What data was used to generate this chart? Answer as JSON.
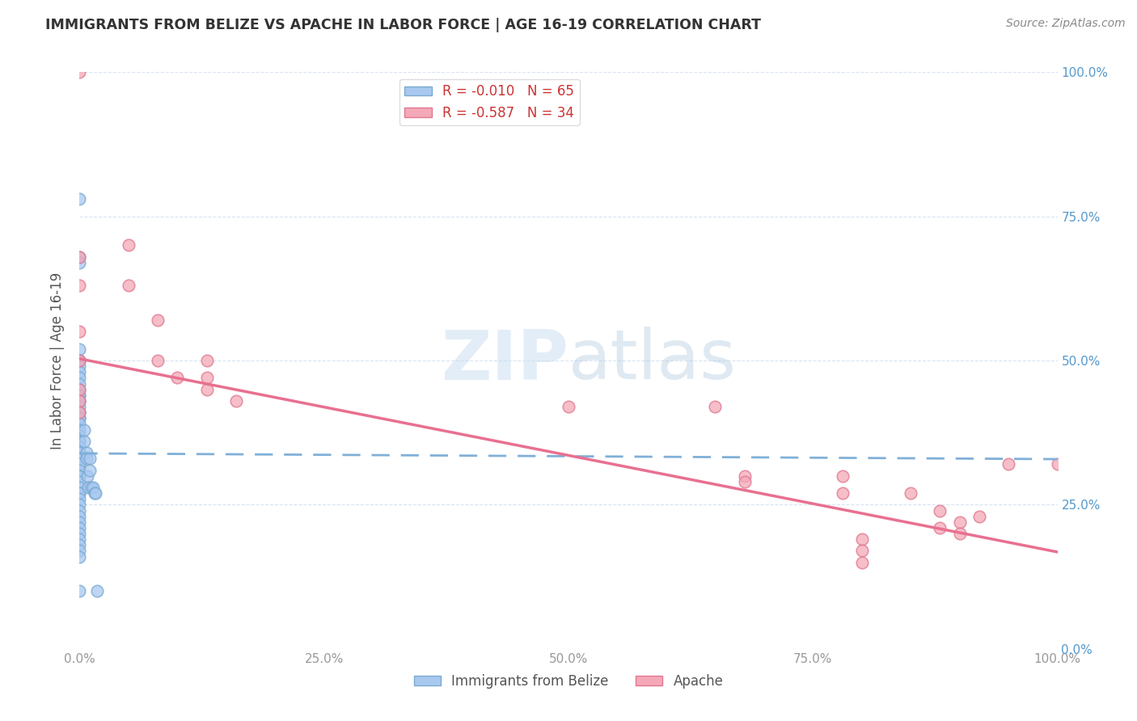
{
  "title": "IMMIGRANTS FROM BELIZE VS APACHE IN LABOR FORCE | AGE 16-19 CORRELATION CHART",
  "source": "Source: ZipAtlas.com",
  "ylabel": "In Labor Force | Age 16-19",
  "xlim": [
    0.0,
    1.0
  ],
  "ylim": [
    0.0,
    1.0
  ],
  "xticks": [
    0.0,
    0.25,
    0.5,
    0.75,
    1.0
  ],
  "yticks": [
    0.0,
    0.25,
    0.5,
    0.75,
    1.0
  ],
  "xtick_labels": [
    "0.0%",
    "25.0%",
    "50.0%",
    "75.0%",
    "100.0%"
  ],
  "ytick_labels_left": [
    "",
    "",
    "",
    "",
    ""
  ],
  "ytick_labels_right": [
    "0.0%",
    "25.0%",
    "50.0%",
    "75.0%",
    "100.0%"
  ],
  "belize_color": "#a8c8f0",
  "apache_color": "#f4a8b8",
  "belize_edge_color": "#7aaad0",
  "apache_edge_color": "#e07890",
  "belize_line_color": "#80b0d8",
  "apache_line_color": "#e87090",
  "belize_R": -0.01,
  "belize_N": 65,
  "apache_R": -0.587,
  "apache_N": 34,
  "belize_x": [
    0.0,
    0.0,
    0.0,
    0.0,
    0.0,
    0.0,
    0.0,
    0.0,
    0.0,
    0.0,
    0.0,
    0.0,
    0.0,
    0.0,
    0.0,
    0.0,
    0.0,
    0.0,
    0.0,
    0.0,
    0.0,
    0.0,
    0.0,
    0.0,
    0.0,
    0.0,
    0.0,
    0.0,
    0.0,
    0.0,
    0.0,
    0.0,
    0.0,
    0.0,
    0.0,
    0.0,
    0.0,
    0.0,
    0.0,
    0.0,
    0.0,
    0.0,
    0.0,
    0.0,
    0.0,
    0.0,
    0.0,
    0.0,
    0.0,
    0.0,
    0.0,
    0.0,
    0.005,
    0.005,
    0.007,
    0.007,
    0.008,
    0.009,
    0.01,
    0.01,
    0.012,
    0.014,
    0.015,
    0.016,
    0.018
  ],
  "belize_y": [
    0.78,
    0.68,
    0.67,
    0.52,
    0.5,
    0.5,
    0.49,
    0.48,
    0.47,
    0.46,
    0.45,
    0.44,
    0.44,
    0.43,
    0.43,
    0.42,
    0.41,
    0.41,
    0.4,
    0.4,
    0.39,
    0.38,
    0.37,
    0.36,
    0.36,
    0.35,
    0.35,
    0.34,
    0.34,
    0.33,
    0.33,
    0.32,
    0.32,
    0.31,
    0.3,
    0.3,
    0.29,
    0.28,
    0.27,
    0.27,
    0.26,
    0.25,
    0.24,
    0.23,
    0.22,
    0.21,
    0.2,
    0.19,
    0.18,
    0.17,
    0.16,
    0.1,
    0.38,
    0.36,
    0.34,
    0.33,
    0.3,
    0.28,
    0.33,
    0.31,
    0.28,
    0.28,
    0.27,
    0.27,
    0.1
  ],
  "apache_x": [
    0.0,
    0.0,
    0.0,
    0.0,
    0.0,
    0.05,
    0.05,
    0.08,
    0.08,
    0.1,
    0.13,
    0.13,
    0.13,
    0.16,
    0.5,
    0.65,
    0.68,
    0.68,
    0.78,
    0.78,
    0.8,
    0.8,
    0.8,
    0.85,
    0.88,
    0.88,
    0.9,
    0.9,
    0.92,
    0.95,
    1.0,
    0.0,
    0.0,
    0.0
  ],
  "apache_y": [
    1.0,
    0.68,
    0.63,
    0.55,
    0.5,
    0.7,
    0.63,
    0.57,
    0.5,
    0.47,
    0.5,
    0.47,
    0.45,
    0.43,
    0.42,
    0.42,
    0.3,
    0.29,
    0.3,
    0.27,
    0.19,
    0.17,
    0.15,
    0.27,
    0.24,
    0.21,
    0.22,
    0.2,
    0.23,
    0.32,
    0.32,
    0.45,
    0.43,
    0.41
  ],
  "belize_trend_x": [
    0.0,
    1.0
  ],
  "belize_trend_y": [
    0.339,
    0.329
  ],
  "apache_trend_x": [
    0.0,
    1.0
  ],
  "apache_trend_y": [
    0.503,
    0.168
  ],
  "watermark_zip": "ZIP",
  "watermark_atlas": "atlas",
  "background_color": "#ffffff",
  "grid_color": "#d8e4f0"
}
